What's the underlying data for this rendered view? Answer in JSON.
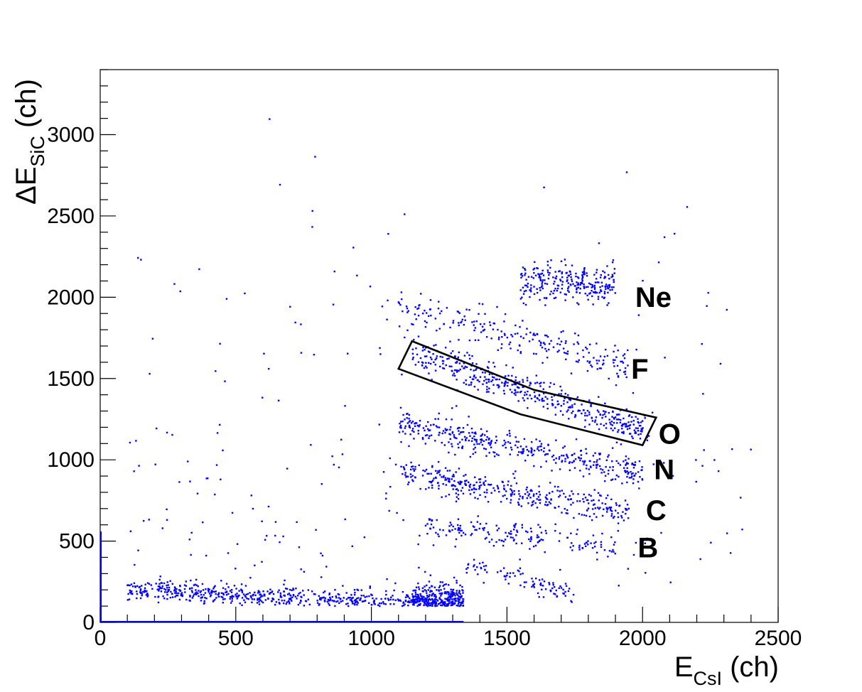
{
  "chart_data": {
    "type": "scatter",
    "title": "",
    "xlabel": {
      "main": "E",
      "sub": "CsI",
      "unit": " (ch)"
    },
    "ylabel": {
      "prefix": "ΔE",
      "sub": "SiC",
      "unit": " (ch)"
    },
    "xlim": [
      0,
      2500
    ],
    "ylim": [
      0,
      3400
    ],
    "x_ticks": [
      0,
      500,
      1000,
      1500,
      2000,
      2500
    ],
    "y_ticks": [
      0,
      500,
      1000,
      1500,
      2000,
      2500,
      3000
    ],
    "x_tick_labels": [
      "0",
      "500",
      "1000",
      "1500",
      "2000",
      "2500"
    ],
    "y_tick_labels": [
      "0",
      "500",
      "1000",
      "1500",
      "2000",
      "2500",
      "3000"
    ],
    "grid": false,
    "marker_color": "#0000ff",
    "gate_color": "#000000",
    "series": [
      {
        "points_note": "",
        "bands": [
          {
            "x_range": [
              1550,
              1900
            ],
            "y_center": 2090,
            "spread": 60,
            "density": 260
          },
          {
            "x_range": [
              1100,
              1950
            ],
            "y_center_start": 1940,
            "y_center_end": 1580,
            "spread": 55,
            "density": 220
          },
          {
            "x_range": [
              1150,
              2020
            ],
            "y_center_start": 1660,
            "y_center_end": 1180,
            "spread": 45,
            "density": 420
          },
          {
            "x_range": [
              1100,
              2000
            ],
            "y_center_start": 1220,
            "y_center_end": 920,
            "spread": 45,
            "density": 380
          },
          {
            "x_range": [
              1100,
              1950
            ],
            "y_center_start": 920,
            "y_center_end": 680,
            "spread": 40,
            "density": 340
          },
          {
            "x_range": [
              1200,
              1900
            ],
            "y_center_start": 600,
            "y_center_end": 460,
            "spread": 35,
            "density": 160
          },
          {
            "x_range": [
              1350,
              1750
            ],
            "y_center_start": 360,
            "y_center_end": 170,
            "spread": 30,
            "density": 90
          },
          {
            "x_range": [
              100,
              1340
            ],
            "y_center_start": 200,
            "y_center_end": 110,
            "spread": 30,
            "density": 650
          },
          {
            "x_range": [
              1150,
              1340
            ],
            "y_center": 140,
            "spread": 50,
            "density": 300
          }
        ]
      }
    ],
    "gate_polygon": [
      [
        1100,
        1560
      ],
      [
        1150,
        1730
      ],
      [
        1600,
        1430
      ],
      [
        2050,
        1260
      ],
      [
        2000,
        1090
      ],
      [
        1550,
        1280
      ]
    ],
    "isotope_labels": [
      {
        "text": "Ne",
        "x": 2040,
        "y": 1940
      },
      {
        "text": "F",
        "x": 1990,
        "y": 1500
      },
      {
        "text": "O",
        "x": 2100,
        "y": 1100
      },
      {
        "text": "N",
        "x": 2080,
        "y": 880
      },
      {
        "text": "C",
        "x": 2050,
        "y": 630
      },
      {
        "text": "B",
        "x": 2020,
        "y": 400
      }
    ]
  }
}
